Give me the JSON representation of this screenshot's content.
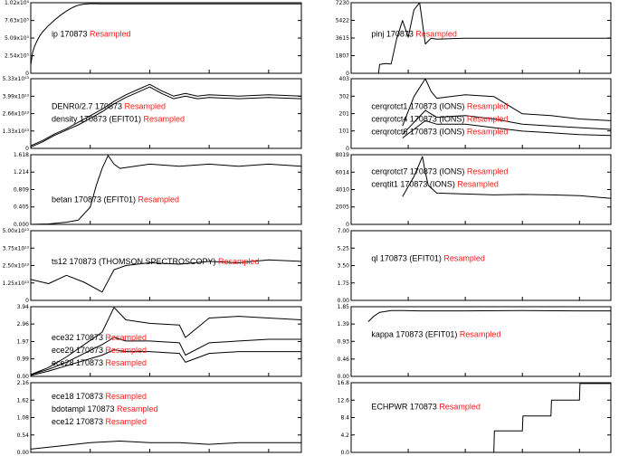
{
  "colors": {
    "resampled": "#ff1a1a",
    "trace": "#000000",
    "axes": "#000000"
  },
  "chart_data": [
    {
      "type": "line",
      "id": "ip",
      "xlim": [
        0,
        4550
      ],
      "ylim": [
        0,
        1020000
      ],
      "yticks": [
        {
          "v": 0,
          "label": "0"
        },
        {
          "v": 254000,
          "label": "2.54x10⁵"
        },
        {
          "v": 509000,
          "label": "5.09x10⁵"
        },
        {
          "v": 763000,
          "label": "7.63x10⁵"
        },
        {
          "v": 1020000,
          "label": "1.02x10⁶"
        }
      ],
      "labels": [
        {
          "text": "ip  170873",
          "tag": "Resampled"
        }
      ],
      "series": [
        {
          "x": [
            0,
            30,
            60,
            100,
            150,
            200,
            300,
            400,
            500,
            600,
            700,
            800,
            900,
            1000,
            1100,
            1200,
            1500,
            2000,
            3000,
            4000,
            4550
          ],
          "y": [
            120000,
            300000,
            380000,
            460000,
            540000,
            600000,
            690000,
            770000,
            840000,
            900000,
            950000,
            985000,
            1000000,
            1005000,
            1005000,
            1003000,
            1004000,
            1004000,
            1003000,
            1004000,
            1004000
          ]
        }
      ]
    },
    {
      "type": "line",
      "id": "pinj",
      "xlim": [
        0,
        4550
      ],
      "ylim": [
        0,
        7230
      ],
      "yticks": [
        {
          "v": 0,
          "label": "0"
        },
        {
          "v": 1807,
          "label": "1807"
        },
        {
          "v": 3615,
          "label": "3615"
        },
        {
          "v": 5422,
          "label": "5422"
        },
        {
          "v": 7230,
          "label": "7230"
        }
      ],
      "labels": [
        {
          "text": "pinj  170873",
          "tag": "Resampled"
        }
      ],
      "series": [
        {
          "x": [
            0,
            480,
            500,
            600,
            700,
            800,
            900,
            1000,
            1100,
            1200,
            1300,
            1400,
            1500,
            2000,
            2500,
            3000,
            3500,
            4000,
            4550
          ],
          "y": [
            0,
            0,
            900,
            1000,
            950,
            3600,
            5400,
            3700,
            6500,
            7230,
            3000,
            3600,
            3500,
            3600,
            3600,
            3600,
            3600,
            3600,
            3600
          ]
        }
      ]
    },
    {
      "type": "line",
      "id": "density",
      "xlim": [
        0,
        4550
      ],
      "ylim": [
        0,
        5330000000000
      ],
      "yticks": [
        {
          "v": 0,
          "label": "0"
        },
        {
          "v": 1330000000000,
          "label": "1.33x10¹³"
        },
        {
          "v": 2660000000000,
          "label": "2.66x10¹³"
        },
        {
          "v": 3990000000000,
          "label": "3.99x10¹³"
        },
        {
          "v": 5330000000000,
          "label": "5.33x10¹³"
        }
      ],
      "labels": [
        {
          "text": "DENR0/2.7  170873",
          "tag": "Resampled"
        },
        {
          "text": "density  170873  (EFIT01)",
          "tag": "Resampled"
        }
      ],
      "series": [
        {
          "x": [
            0,
            200,
            400,
            600,
            800,
            1000,
            1200,
            1400,
            1600,
            1800,
            2000,
            2200,
            2400,
            2600,
            2800,
            3000,
            3500,
            4000,
            4550
          ],
          "y": [
            200000000000,
            600000000000,
            1100000000000,
            1500000000000,
            2000000000000,
            2500000000000,
            3000000000000,
            3600000000000,
            4100000000000,
            4500000000000,
            4900000000000,
            4400000000000,
            4000000000000,
            4200000000000,
            4000000000000,
            4100000000000,
            4000000000000,
            4100000000000,
            4000000000000
          ]
        },
        {
          "x": [
            0,
            200,
            400,
            600,
            800,
            1000,
            1200,
            1400,
            1600,
            1800,
            2000,
            2200,
            2400,
            2600,
            2800,
            3000,
            3500,
            4000,
            4550
          ],
          "y": [
            100000000000,
            500000000000,
            1000000000000,
            1400000000000,
            1800000000000,
            2300000000000,
            2800000000000,
            3400000000000,
            3900000000000,
            4300000000000,
            4700000000000,
            4200000000000,
            3800000000000,
            4000000000000,
            3800000000000,
            3900000000000,
            3800000000000,
            3900000000000,
            3800000000000
          ]
        }
      ]
    },
    {
      "type": "line",
      "id": "cerqrotct",
      "xlim": [
        0,
        4550
      ],
      "ylim": [
        0,
        403
      ],
      "yticks": [
        {
          "v": 0,
          "label": "0"
        },
        {
          "v": 101,
          "label": "101"
        },
        {
          "v": 201,
          "label": "201"
        },
        {
          "v": 302,
          "label": "302"
        },
        {
          "v": 403,
          "label": "403"
        }
      ],
      "labels": [
        {
          "text": "cerqrotct1  170873  (IONS)",
          "tag": "Resampled"
        },
        {
          "text": "cerqrotct4  170873  (IONS)",
          "tag": "Resampled"
        },
        {
          "text": "cerqrotct6  170873  (IONS)",
          "tag": "Resampled"
        }
      ],
      "series": [
        {
          "x": [
            900,
            1100,
            1300,
            1400,
            1500,
            2000,
            2500,
            3000,
            3500,
            4000,
            4550
          ],
          "y": [
            130,
            300,
            403,
            330,
            290,
            310,
            300,
            200,
            190,
            170,
            160
          ]
        },
        {
          "x": [
            900,
            1100,
            1300,
            1400,
            1500,
            2000,
            2500,
            3000,
            3500,
            4000,
            4550
          ],
          "y": [
            80,
            150,
            220,
            200,
            180,
            190,
            170,
            140,
            130,
            120,
            110
          ]
        },
        {
          "x": [
            900,
            1100,
            1300,
            1400,
            1500,
            2000,
            2500,
            3000,
            3500,
            4000,
            4550
          ],
          "y": [
            60,
            110,
            160,
            150,
            140,
            140,
            120,
            100,
            90,
            80,
            75
          ]
        }
      ]
    },
    {
      "type": "line",
      "id": "betan",
      "xlim": [
        0,
        4550
      ],
      "ylim": [
        0,
        1.618
      ],
      "yticks": [
        {
          "v": 0,
          "label": "0.000"
        },
        {
          "v": 0.405,
          "label": "0.405"
        },
        {
          "v": 0.809,
          "label": "0.809"
        },
        {
          "v": 1.214,
          "label": "1.214"
        },
        {
          "v": 1.618,
          "label": "1.618"
        }
      ],
      "labels": [
        {
          "text": "betan  170873  (EFIT01)",
          "tag": "Resampled"
        }
      ],
      "series": [
        {
          "x": [
            0,
            300,
            600,
            800,
            1000,
            1100,
            1200,
            1300,
            1400,
            1500,
            2000,
            2500,
            3000,
            3500,
            4000,
            4550
          ],
          "y": [
            0,
            0.01,
            0.05,
            0.1,
            0.4,
            0.9,
            1.3,
            1.6,
            1.4,
            1.3,
            1.4,
            1.35,
            1.4,
            1.35,
            1.4,
            1.35
          ]
        }
      ]
    },
    {
      "type": "line",
      "id": "cerqrotct7",
      "xlim": [
        0,
        4550
      ],
      "ylim": [
        0,
        8019
      ],
      "yticks": [
        {
          "v": 0,
          "label": "0"
        },
        {
          "v": 2005,
          "label": "2005"
        },
        {
          "v": 4010,
          "label": "4010"
        },
        {
          "v": 6014,
          "label": "6014"
        },
        {
          "v": 8019,
          "label": "8019"
        }
      ],
      "labels": [
        {
          "text": "cerqrotct7  170873  (IONS)",
          "tag": "Resampled"
        },
        {
          "text": "cerqtit1  170873  (IONS)",
          "tag": "Resampled"
        }
      ],
      "series": [
        {
          "x": [
            900,
            1100,
            1250,
            1300,
            1350,
            1500,
            2000,
            2500,
            3000,
            3500,
            4000,
            4550
          ],
          "y": [
            3200,
            5500,
            7800,
            6000,
            4500,
            3600,
            3500,
            3400,
            3450,
            3400,
            3300,
            3000
          ]
        }
      ]
    },
    {
      "type": "line",
      "id": "ts12",
      "xlim": [
        0,
        4550
      ],
      "ylim": [
        0,
        5000000000000
      ],
      "yticks": [
        {
          "v": 0,
          "label": "0"
        },
        {
          "v": 1250000000000,
          "label": "1.25x10¹³"
        },
        {
          "v": 2500000000000,
          "label": "2.50x10¹³"
        },
        {
          "v": 3750000000000,
          "label": "3.75x10¹³"
        },
        {
          "v": 5000000000000,
          "label": "5.00x10¹³"
        }
      ],
      "labels": [
        {
          "text": "ts12  170873  (THOMSON  SPECTROSCOPY)",
          "tag": "Resampled"
        }
      ],
      "series": [
        {
          "x": [
            0,
            300,
            600,
            900,
            1200,
            1400,
            1600,
            2000,
            2500,
            3000,
            3500,
            4000,
            4550
          ],
          "y": [
            1500000000000,
            1200000000000,
            1800000000000,
            1300000000000,
            600000000000,
            2200000000000,
            2500000000000,
            2700000000000,
            2600000000000,
            2800000000000,
            2700000000000,
            2900000000000,
            2800000000000
          ]
        }
      ]
    },
    {
      "type": "line",
      "id": "ql",
      "xlim": [
        0,
        4550
      ],
      "ylim": [
        0,
        7
      ],
      "yticks": [
        {
          "v": 0,
          "label": "0.00"
        },
        {
          "v": 1.75,
          "label": "1.75"
        },
        {
          "v": 3.5,
          "label": "3.50"
        },
        {
          "v": 5.25,
          "label": "5.25"
        },
        {
          "v": 7,
          "label": "7.00"
        }
      ],
      "labels": [
        {
          "text": "ql  170873  (EFIT01)",
          "tag": "Resampled"
        }
      ],
      "series": []
    },
    {
      "type": "line",
      "id": "ece",
      "xlim": [
        0,
        4550
      ],
      "ylim": [
        0,
        3.94
      ],
      "yticks": [
        {
          "v": 0,
          "label": "0.00"
        },
        {
          "v": 0.99,
          "label": "0.99"
        },
        {
          "v": 1.97,
          "label": "1.97"
        },
        {
          "v": 2.96,
          "label": "2.96"
        },
        {
          "v": 3.94,
          "label": "3.94"
        }
      ],
      "labels": [
        {
          "text": "ece32  170873",
          "tag": "Resampled"
        },
        {
          "text": "ece29  170873",
          "tag": "Resampled"
        },
        {
          "text": "ece28  170873",
          "tag": "Resampled"
        }
      ],
      "series": [
        {
          "x": [
            0,
            300,
            600,
            900,
            1200,
            1400,
            1600,
            2000,
            2500,
            2600,
            3000,
            3500,
            4000,
            4550
          ],
          "y": [
            0.1,
            0.5,
            1.1,
            1.8,
            2.5,
            3.9,
            3.2,
            3.0,
            2.9,
            2.2,
            3.3,
            3.4,
            3.3,
            3.2
          ]
        },
        {
          "x": [
            0,
            300,
            600,
            900,
            1200,
            1400,
            1600,
            2000,
            2500,
            2600,
            3000,
            3500,
            4000,
            4550
          ],
          "y": [
            0.1,
            0.4,
            0.8,
            1.3,
            1.8,
            2.2,
            2.0,
            2.0,
            1.9,
            1.2,
            1.9,
            2.0,
            2.1,
            2.1
          ]
        },
        {
          "x": [
            0,
            300,
            600,
            900,
            1200,
            1400,
            1600,
            2000,
            2500,
            2600,
            3000,
            3500,
            4000,
            4550
          ],
          "y": [
            0.05,
            0.3,
            0.6,
            0.9,
            1.2,
            1.5,
            1.4,
            1.4,
            1.3,
            0.8,
            1.3,
            1.4,
            1.4,
            1.4
          ]
        }
      ]
    },
    {
      "type": "line",
      "id": "kappa",
      "xlim": [
        0,
        4550
      ],
      "ylim": [
        0,
        1.85
      ],
      "yticks": [
        {
          "v": 0,
          "label": "0.00"
        },
        {
          "v": 0.46,
          "label": "0.46"
        },
        {
          "v": 0.93,
          "label": "0.93"
        },
        {
          "v": 1.39,
          "label": "1.39"
        },
        {
          "v": 1.85,
          "label": "1.85"
        }
      ],
      "labels": [
        {
          "text": "kappa  170873  (EFIT01)",
          "tag": "Resampled"
        }
      ],
      "series": [
        {
          "x": [
            300,
            400,
            500,
            700,
            900,
            1200,
            2000,
            3000,
            4000,
            4550
          ],
          "y": [
            1.45,
            1.6,
            1.7,
            1.75,
            1.75,
            1.74,
            1.74,
            1.75,
            1.74,
            1.74
          ]
        }
      ]
    },
    {
      "type": "line",
      "id": "ece18",
      "xlim": [
        0,
        4550
      ],
      "ylim": [
        0,
        2.16
      ],
      "yticks": [
        {
          "v": 0,
          "label": "0.00"
        },
        {
          "v": 0.54,
          "label": "0.54"
        },
        {
          "v": 1.08,
          "label": "1.08"
        },
        {
          "v": 1.62,
          "label": "1.62"
        },
        {
          "v": 2.16,
          "label": "2.16"
        }
      ],
      "xticks": [
        {
          "v": 0,
          "label": "0"
        },
        {
          "v": 1000,
          "label": "1000"
        },
        {
          "v": 2000,
          "label": "2000"
        },
        {
          "v": 3000,
          "label": "3000"
        },
        {
          "v": 4000,
          "label": "4000"
        }
      ],
      "labels": [
        {
          "text": "ece18  170873",
          "tag": "Resampled"
        },
        {
          "text": "bdotampl  170873",
          "tag": "Resampled"
        },
        {
          "text": "ece12  170873",
          "tag": "Resampled"
        }
      ],
      "series": [
        {
          "x": [
            0,
            500,
            1000,
            1500,
            2000,
            2500,
            3000,
            3500,
            4000,
            4550
          ],
          "y": [
            0.1,
            0.2,
            0.3,
            0.35,
            0.3,
            0.3,
            0.25,
            0.3,
            0.3,
            0.3
          ]
        }
      ]
    },
    {
      "type": "line",
      "id": "echpwr",
      "xlim": [
        0,
        4550
      ],
      "ylim": [
        0,
        16.8
      ],
      "yticks": [
        {
          "v": 0,
          "label": "0.0"
        },
        {
          "v": 4.2,
          "label": "4.2"
        },
        {
          "v": 8.4,
          "label": "8.4"
        },
        {
          "v": 12.6,
          "label": "12.6"
        },
        {
          "v": 16.8,
          "label": "16.8"
        }
      ],
      "xticks": [
        {
          "v": 0,
          "label": "0"
        },
        {
          "v": 1000,
          "label": "1000"
        },
        {
          "v": 2000,
          "label": "2000"
        },
        {
          "v": 3000,
          "label": "3000"
        },
        {
          "v": 4000,
          "label": "4000"
        }
      ],
      "labels": [
        {
          "text": "ECHPWR  170873",
          "tag": "Resampled"
        }
      ],
      "series": [
        {
          "x": [
            0,
            2500,
            2510,
            3000,
            3010,
            3500,
            3510,
            4000,
            4010,
            4550
          ],
          "y": [
            0,
            0,
            5.2,
            5.2,
            8.8,
            8.8,
            12.6,
            12.6,
            16.6,
            16.6
          ]
        }
      ]
    }
  ]
}
